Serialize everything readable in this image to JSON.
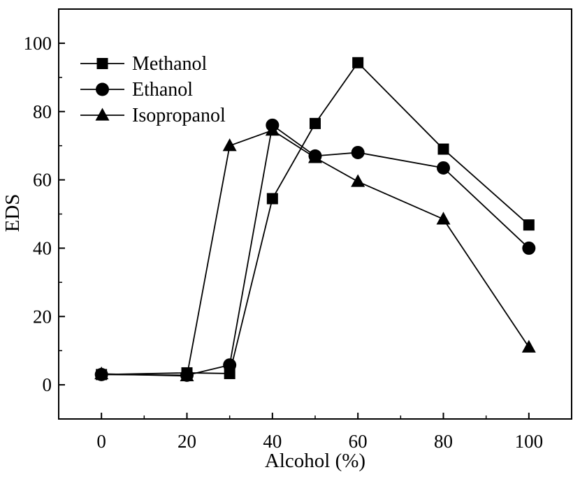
{
  "chart_data": {
    "type": "line",
    "xlabel": "Alcohol (%)",
    "ylabel": "EDS",
    "xlim": [
      -10,
      110
    ],
    "ylim": [
      -10,
      110
    ],
    "x_ticks": [
      0,
      20,
      40,
      60,
      80,
      100
    ],
    "y_ticks": [
      0,
      20,
      40,
      60,
      80,
      100
    ],
    "x_tick_labels": [
      "0",
      "20",
      "40",
      "60",
      "80",
      "100"
    ],
    "y_tick_labels": [
      "0",
      "20",
      "40",
      "60",
      "80",
      "100"
    ],
    "grid": false,
    "legend_position": "top-left",
    "series": [
      {
        "name": "Methanol",
        "marker": "square",
        "x": [
          0,
          20,
          30,
          40,
          50,
          60,
          80,
          100
        ],
        "y": [
          3,
          3.5,
          3.3,
          54.5,
          76.5,
          94.3,
          69,
          46.8
        ]
      },
      {
        "name": "Ethanol",
        "marker": "circle",
        "x": [
          0,
          20,
          30,
          40,
          50,
          60,
          80,
          100
        ],
        "y": [
          3,
          2.8,
          5.8,
          76,
          67,
          68,
          63.5,
          40
        ]
      },
      {
        "name": "Isopropanol",
        "marker": "triangle",
        "x": [
          0,
          20,
          30,
          40,
          50,
          60,
          80,
          100
        ],
        "y": [
          3.2,
          2.6,
          70,
          74.5,
          66.5,
          59.5,
          48.5,
          11
        ]
      }
    ],
    "line_color": "#000000"
  }
}
